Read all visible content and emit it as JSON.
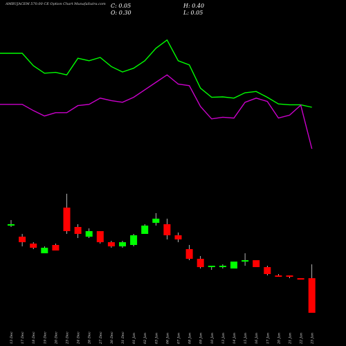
{
  "header": {
    "title": "AMBUJACEM 570.00  CE Option  Chart MunafaSutra.com",
    "close_label": "C: 0.05",
    "open_label": "O: 0.30",
    "high_label": "H: 0.40",
    "low_label": "L: 0.05"
  },
  "colors": {
    "background": "#000000",
    "bull": "#00ff00",
    "bear": "#ff0000",
    "ma_fast": "#00ff00",
    "ma_slow": "#cc00cc"
  },
  "chart_data": {
    "type": "candlestick",
    "categories": [
      "13 Dec",
      "17 Dec",
      "18 Dec",
      "19 Dec",
      "20 Dec",
      "23 Dec",
      "24 Dec",
      "26 Dec",
      "27 Dec",
      "30 Dec",
      "31 Dec",
      "01 Jan",
      "02 Jan",
      "03 Jan",
      "06 Jan",
      "07 Jan",
      "08 Jan",
      "09 Jan",
      "10 Jan",
      "13 Jan",
      "14 Jan",
      "15 Jan",
      "16 Jan",
      "17 Jan",
      "20 Jan",
      "21 Jan",
      "22 Jan",
      "23 Jan"
    ],
    "candles": [
      {
        "o": 0.68,
        "h": 0.72,
        "l": 0.67,
        "c": 0.69
      },
      {
        "o": 0.6,
        "h": 0.62,
        "l": 0.53,
        "c": 0.56
      },
      {
        "o": 0.55,
        "h": 0.56,
        "l": 0.51,
        "c": 0.52
      },
      {
        "o": 0.48,
        "h": 0.53,
        "l": 0.48,
        "c": 0.52
      },
      {
        "o": 0.54,
        "h": 0.55,
        "l": 0.5,
        "c": 0.5
      },
      {
        "o": 0.81,
        "h": 0.91,
        "l": 0.62,
        "c": 0.64
      },
      {
        "o": 0.67,
        "h": 0.69,
        "l": 0.59,
        "c": 0.62
      },
      {
        "o": 0.6,
        "h": 0.66,
        "l": 0.59,
        "c": 0.64
      },
      {
        "o": 0.64,
        "h": 0.64,
        "l": 0.55,
        "c": 0.56
      },
      {
        "o": 0.56,
        "h": 0.57,
        "l": 0.52,
        "c": 0.53
      },
      {
        "o": 0.53,
        "h": 0.57,
        "l": 0.52,
        "c": 0.56
      },
      {
        "o": 0.54,
        "h": 0.62,
        "l": 0.53,
        "c": 0.61
      },
      {
        "o": 0.62,
        "h": 0.69,
        "l": 0.62,
        "c": 0.68
      },
      {
        "o": 0.7,
        "h": 0.77,
        "l": 0.68,
        "c": 0.73
      },
      {
        "o": 0.69,
        "h": 0.73,
        "l": 0.58,
        "c": 0.61
      },
      {
        "o": 0.61,
        "h": 0.63,
        "l": 0.56,
        "c": 0.58
      },
      {
        "o": 0.51,
        "h": 0.54,
        "l": 0.43,
        "c": 0.44
      },
      {
        "o": 0.44,
        "h": 0.46,
        "l": 0.37,
        "c": 0.38
      },
      {
        "o": 0.38,
        "h": 0.39,
        "l": 0.36,
        "c": 0.39
      },
      {
        "o": 0.38,
        "h": 0.4,
        "l": 0.37,
        "c": 0.39
      },
      {
        "o": 0.37,
        "h": 0.42,
        "l": 0.37,
        "c": 0.42
      },
      {
        "o": 0.42,
        "h": 0.48,
        "l": 0.39,
        "c": 0.43
      },
      {
        "o": 0.43,
        "h": 0.43,
        "l": 0.38,
        "c": 0.38
      },
      {
        "o": 0.38,
        "h": 0.39,
        "l": 0.32,
        "c": 0.33
      },
      {
        "o": 0.32,
        "h": 0.33,
        "l": 0.31,
        "c": 0.31
      },
      {
        "o": 0.32,
        "h": 0.32,
        "l": 0.3,
        "c": 0.31
      },
      {
        "o": 0.3,
        "h": 0.3,
        "l": 0.29,
        "c": 0.29
      },
      {
        "o": 0.3,
        "h": 0.4,
        "l": 0.05,
        "c": 0.05
      }
    ],
    "ma_fast": [
      3.3,
      3.3,
      3.0,
      2.82,
      2.84,
      2.78,
      3.18,
      3.12,
      3.2,
      2.98,
      2.85,
      2.94,
      3.12,
      3.42,
      3.62,
      3.12,
      3.02,
      2.46,
      2.24,
      2.25,
      2.22,
      2.35,
      2.38,
      2.24,
      2.08,
      2.06,
      2.06,
      2.0
    ],
    "ma_slow": [
      2.07,
      2.07,
      1.92,
      1.79,
      1.87,
      1.87,
      2.04,
      2.07,
      2.22,
      2.16,
      2.12,
      2.24,
      2.42,
      2.6,
      2.78,
      2.56,
      2.52,
      2.02,
      1.72,
      1.76,
      1.74,
      2.12,
      2.22,
      2.14,
      1.74,
      1.81,
      2.05,
      1.0
    ],
    "ma_range": [
      0,
      4
    ],
    "price_range": [
      0,
      1
    ],
    "grid": false
  }
}
